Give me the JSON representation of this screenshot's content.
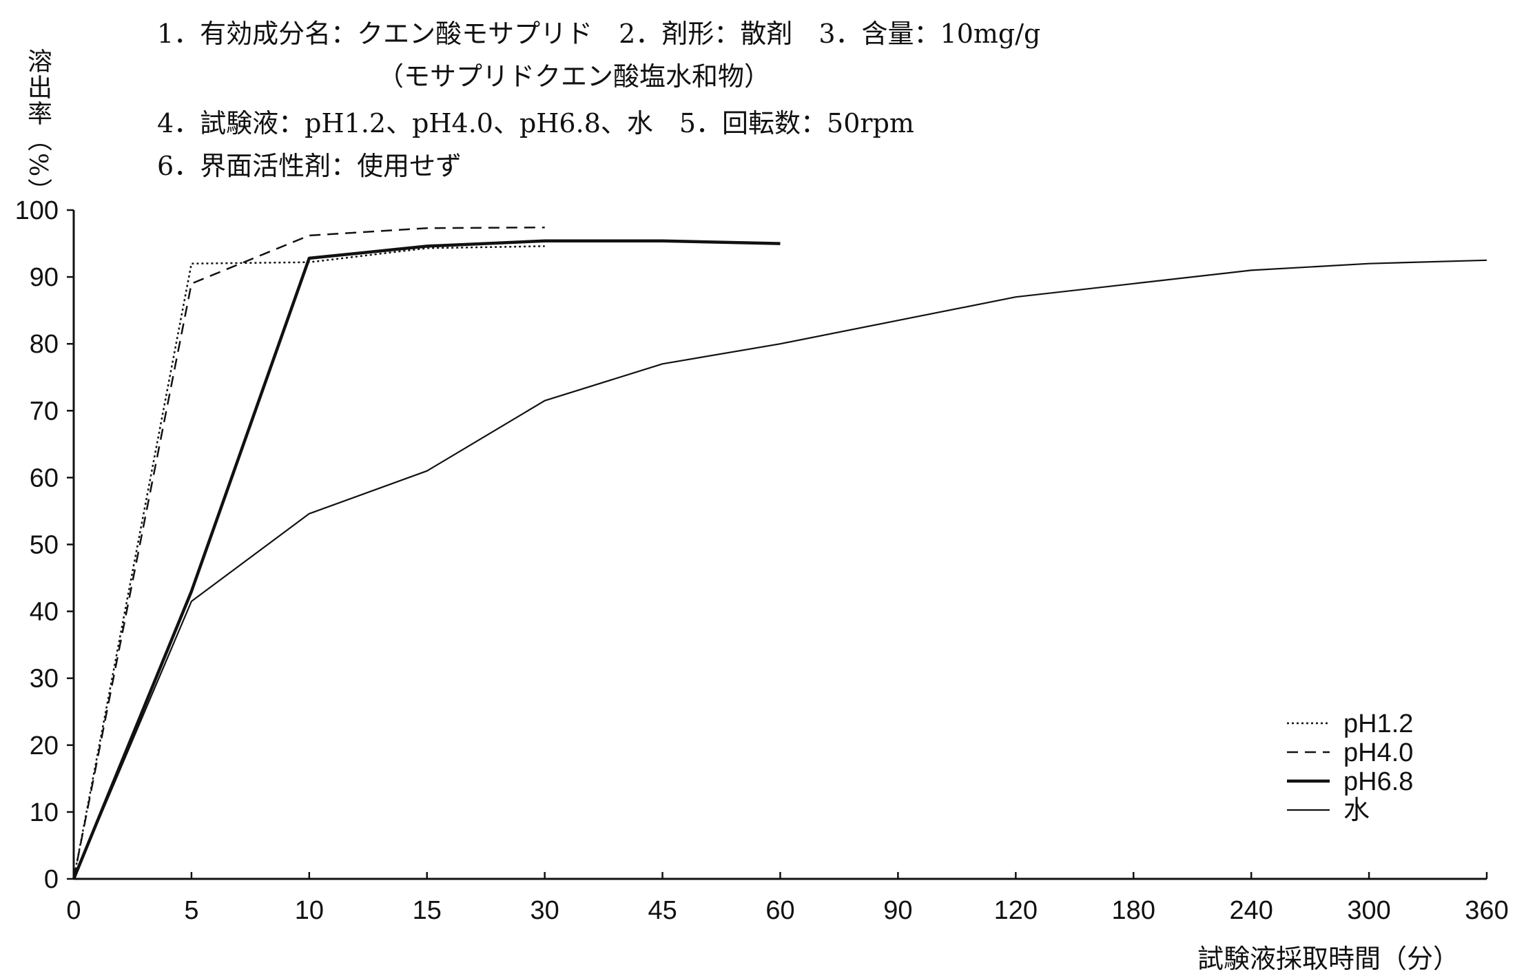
{
  "header": {
    "line1": "1．有効成分名：クエン酸モサプリド　2．剤形：散剤　3．含量：10mg/g",
    "line2": "（モサプリドクエン酸塩水和物）",
    "line3": "4．試験液：pH1.2、pH4.0、pH6.8、水　5．回転数：50rpm",
    "line4": "6．界面活性剤：使用せず"
  },
  "chart_data": {
    "type": "line",
    "title": "",
    "xlabel": "試験液採取時間（分）",
    "ylabel": "溶出率（%）",
    "x_scale": "categorical, equally spaced ticks",
    "categories": [
      "0",
      "5",
      "10",
      "15",
      "30",
      "45",
      "60",
      "90",
      "120",
      "180",
      "240",
      "300",
      "360"
    ],
    "ylim": [
      0,
      100
    ],
    "yticks": [
      0,
      10,
      20,
      30,
      40,
      50,
      60,
      70,
      80,
      90,
      100
    ],
    "grid": false,
    "legend_position": "bottom-right",
    "series": [
      {
        "name": "pH1.2",
        "style": "dotted",
        "points": [
          [
            "0",
            0
          ],
          [
            "5",
            92
          ],
          [
            "10",
            92.2
          ],
          [
            "15",
            94.3
          ],
          [
            "30",
            94.6
          ]
        ]
      },
      {
        "name": "pH4.0",
        "style": "dashed",
        "points": [
          [
            "0",
            0
          ],
          [
            "5",
            89
          ],
          [
            "10",
            96.2
          ],
          [
            "15",
            97.3
          ],
          [
            "30",
            97.4
          ]
        ]
      },
      {
        "name": "pH6.8",
        "style": "solid-thick",
        "points": [
          [
            "0",
            0
          ],
          [
            "5",
            43
          ],
          [
            "10",
            92.8
          ],
          [
            "15",
            94.6
          ],
          [
            "30",
            95.4
          ],
          [
            "45",
            95.4
          ],
          [
            "60",
            95
          ]
        ]
      },
      {
        "name": "水",
        "style": "solid-thin",
        "points": [
          [
            "0",
            0
          ],
          [
            "5",
            41.5
          ],
          [
            "10",
            54.6
          ],
          [
            "15",
            61
          ],
          [
            "30",
            71.5
          ],
          [
            "45",
            77
          ],
          [
            "60",
            80
          ],
          [
            "90",
            83.5
          ],
          [
            "120",
            87
          ],
          [
            "180",
            89
          ],
          [
            "240",
            91
          ],
          [
            "300",
            92
          ],
          [
            "360",
            92.5
          ]
        ]
      }
    ]
  }
}
